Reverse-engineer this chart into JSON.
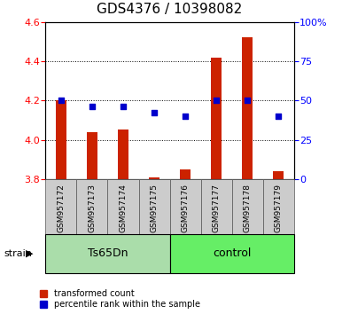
{
  "title": "GDS4376 / 10398082",
  "samples": [
    "GSM957172",
    "GSM957173",
    "GSM957174",
    "GSM957175",
    "GSM957176",
    "GSM957177",
    "GSM957178",
    "GSM957179"
  ],
  "red_values": [
    4.2,
    4.04,
    4.05,
    3.81,
    3.85,
    4.42,
    4.52,
    3.84
  ],
  "blue_values": [
    50,
    46,
    46,
    42,
    40,
    50,
    50,
    40
  ],
  "ylim_left": [
    3.8,
    4.6
  ],
  "ylim_right": [
    0,
    100
  ],
  "yticks_left": [
    3.8,
    4.0,
    4.2,
    4.4,
    4.6
  ],
  "yticks_right": [
    0,
    25,
    50,
    75,
    100
  ],
  "ytick_labels_right": [
    "0",
    "25",
    "50",
    "75",
    "100%"
  ],
  "bar_color": "#cc2200",
  "dot_color": "#0000cc",
  "group1_label": "Ts65Dn",
  "group1_color": "#aaddaa",
  "group2_label": "control",
  "group2_color": "#66ee66",
  "strain_label": "strain",
  "legend_bar": "transformed count",
  "legend_dot": "percentile rank within the sample",
  "baseline": 3.8,
  "title_fontsize": 11,
  "tick_fontsize": 8,
  "sample_fontsize": 6.5,
  "group_fontsize": 9,
  "legend_fontsize": 7,
  "bar_width": 0.35
}
